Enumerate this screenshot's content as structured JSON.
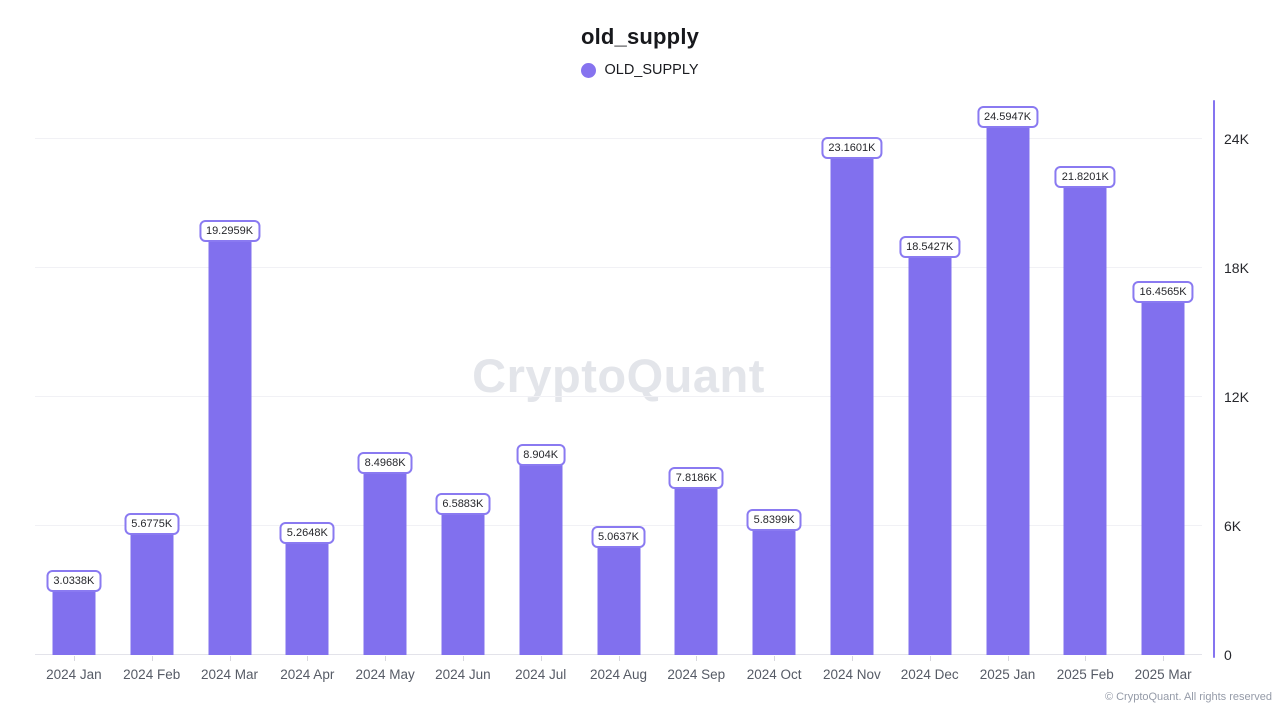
{
  "header": {
    "title": "old_supply"
  },
  "legend": {
    "items": [
      {
        "label": "OLD_SUPPLY",
        "color": "#8673ef"
      }
    ]
  },
  "watermark": "CryptoQuant",
  "footer": {
    "copyright": "© CryptoQuant. All rights reserved"
  },
  "colors": {
    "bar": "#8170ee",
    "value_label_border": "#8a7af1",
    "axis_line": "#8574f0",
    "gridline": "#f1f1f5",
    "watermark": "#e3e5ea"
  },
  "chart_data": {
    "type": "bar",
    "title": "old_supply",
    "series_name": "OLD_SUPPLY",
    "unit": "K",
    "categories": [
      "2024 Jan",
      "2024 Feb",
      "2024 Mar",
      "2024 Apr",
      "2024 May",
      "2024 Jun",
      "2024 Jul",
      "2024 Aug",
      "2024 Sep",
      "2024 Oct",
      "2024 Nov",
      "2024 Dec",
      "2025 Jan",
      "2025 Feb",
      "2025 Mar"
    ],
    "values_k": [
      3.0338,
      5.6775,
      19.2959,
      5.2648,
      8.4968,
      6.5883,
      8.904,
      5.0637,
      7.8186,
      5.8399,
      23.1601,
      18.5427,
      24.5947,
      21.8201,
      16.4565
    ],
    "value_labels": [
      "3.0338K",
      "5.6775K",
      "19.2959K",
      "5.2648K",
      "8.4968K",
      "6.5883K",
      "8.904K",
      "5.0637K",
      "7.8186K",
      "5.8399K",
      "23.1601K",
      "18.5427K",
      "24.5947K",
      "21.8201K",
      "16.4565K"
    ],
    "xlabel": "",
    "ylabel": "",
    "ylim_k": [
      0,
      25.9
    ],
    "y_ticks": [
      {
        "label": "0",
        "value_k": 0
      },
      {
        "label": "6K",
        "value_k": 6
      },
      {
        "label": "12K",
        "value_k": 12
      },
      {
        "label": "18K",
        "value_k": 18
      },
      {
        "label": "24K",
        "value_k": 24
      }
    ],
    "grid": "horizontal",
    "legend_position": "top"
  }
}
